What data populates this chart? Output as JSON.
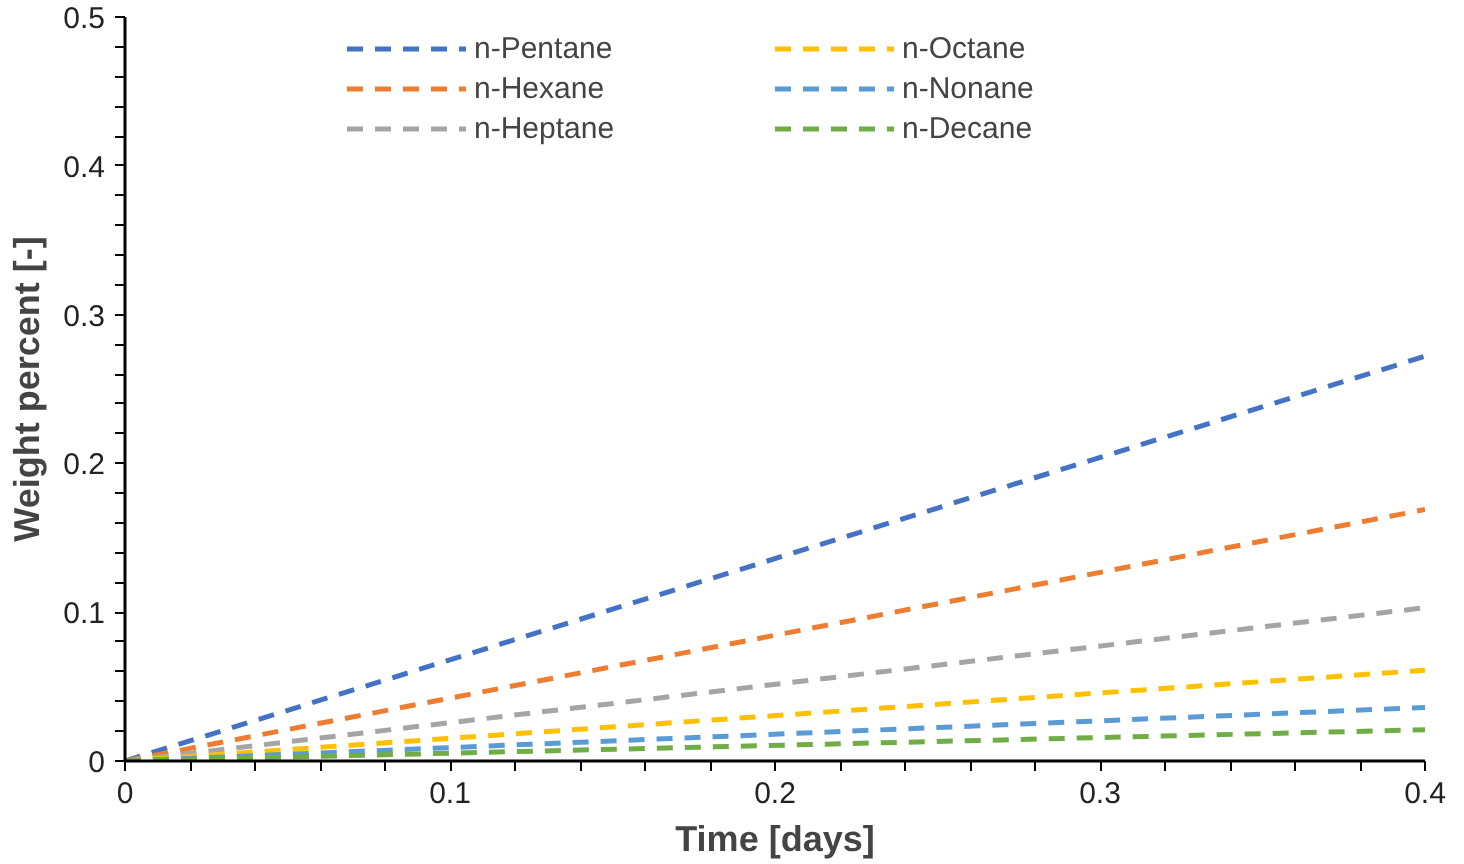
{
  "chart_data": {
    "type": "line",
    "xlabel": "Time [days]",
    "ylabel": "Weight percent [-]",
    "x": [
      0,
      0.4
    ],
    "series": [
      {
        "name": "n-Pentane",
        "color": "#4472c4",
        "values": [
          0,
          0.272
        ]
      },
      {
        "name": "n-Hexane",
        "color": "#ed7d31",
        "values": [
          0,
          0.169
        ]
      },
      {
        "name": "n-Heptane",
        "color": "#a5a5a5",
        "values": [
          0,
          0.103
        ]
      },
      {
        "name": "n-Octane",
        "color": "#ffc000",
        "values": [
          0,
          0.061
        ]
      },
      {
        "name": "n-Nonane",
        "color": "#5b9bd5",
        "values": [
          0,
          0.036
        ]
      },
      {
        "name": "n-Decane",
        "color": "#70ad47",
        "values": [
          0,
          0.021
        ]
      }
    ],
    "xlim": [
      0,
      0.4
    ],
    "ylim": [
      0,
      0.5
    ],
    "xticks": [
      0,
      {
        "value": 0.02,
        "label": null
      },
      {
        "value": 0.04,
        "label": null
      },
      {
        "value": 0.06,
        "label": null
      },
      {
        "value": 0.08,
        "label": null
      },
      0.1,
      {
        "value": 0.12,
        "label": null
      },
      {
        "value": 0.14,
        "label": null
      },
      {
        "value": 0.16,
        "label": null
      },
      {
        "value": 0.18,
        "label": null
      },
      0.2,
      {
        "value": 0.22,
        "label": null
      },
      {
        "value": 0.24,
        "label": null
      },
      {
        "value": 0.26,
        "label": null
      },
      {
        "value": 0.28,
        "label": null
      },
      0.3,
      {
        "value": 0.32,
        "label": null
      },
      {
        "value": 0.34,
        "label": null
      },
      {
        "value": 0.36,
        "label": null
      },
      {
        "value": 0.38,
        "label": null
      },
      0.4
    ],
    "yticks": [
      0,
      {
        "value": 0.02,
        "label": null
      },
      {
        "value": 0.04,
        "label": null
      },
      {
        "value": 0.06,
        "label": null
      },
      {
        "value": 0.08,
        "label": null
      },
      0.1,
      {
        "value": 0.12,
        "label": null
      },
      {
        "value": 0.14,
        "label": null
      },
      {
        "value": 0.16,
        "label": null
      },
      {
        "value": 0.18,
        "label": null
      },
      0.2,
      {
        "value": 0.22,
        "label": null
      },
      {
        "value": 0.24,
        "label": null
      },
      {
        "value": 0.26,
        "label": null
      },
      {
        "value": 0.28,
        "label": null
      },
      0.3,
      {
        "value": 0.32,
        "label": null
      },
      {
        "value": 0.34,
        "label": null
      },
      {
        "value": 0.36,
        "label": null
      },
      {
        "value": 0.38,
        "label": null
      },
      0.4,
      {
        "value": 0.42,
        "label": null
      },
      {
        "value": 0.44,
        "label": null
      },
      {
        "value": 0.46,
        "label": null
      },
      {
        "value": 0.48,
        "label": null
      },
      0.5
    ],
    "grid": false,
    "legend": "top",
    "line_style": "dashed",
    "marker": "none"
  }
}
